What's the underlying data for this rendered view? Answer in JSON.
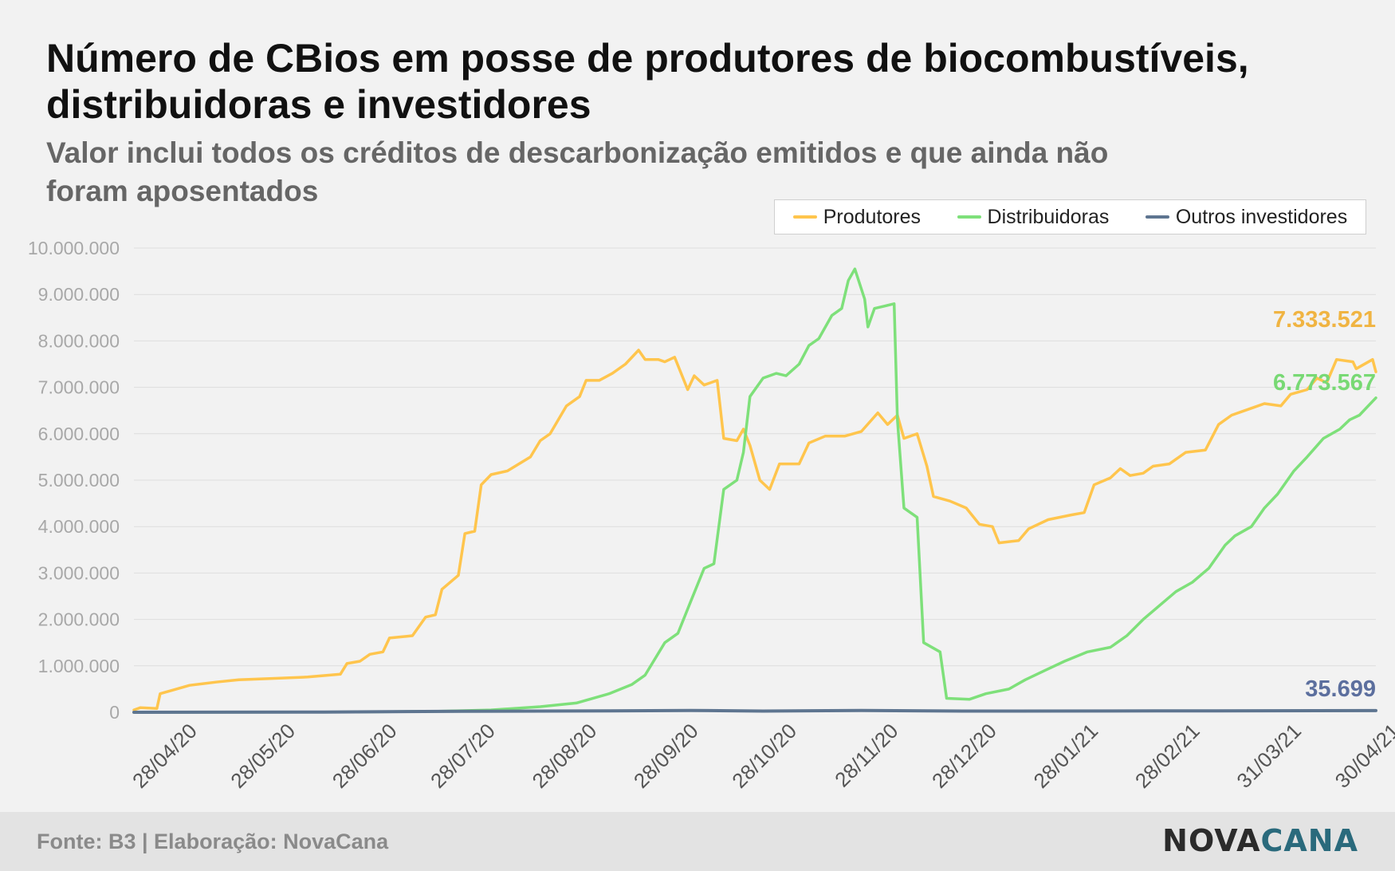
{
  "header": {
    "title": "Número de CBios em posse de produtores de biocombustíveis, distribuidoras e investidores",
    "subtitle": "Valor inclui todos os créditos de descarbonização emitidos e que ainda não foram aposentados"
  },
  "footer": {
    "source": "Fonte: B3 | Elaboração: NovaCana",
    "logo_part1": "NOVA",
    "logo_part2": "CANA"
  },
  "chart_data": {
    "type": "line",
    "title": "Número de CBios em posse de produtores de biocombustíveis, distribuidoras e investidores",
    "subtitle": "Valor inclui todos os créditos de descarbonização emitidos e que ainda não foram aposentados",
    "xlabel": "",
    "ylabel": "",
    "ylim": [
      0,
      10000000
    ],
    "yticks": [
      0,
      1000000,
      2000000,
      3000000,
      4000000,
      5000000,
      6000000,
      7000000,
      8000000,
      9000000,
      10000000
    ],
    "ytick_labels": [
      "0",
      "1.000.000",
      "2.000.000",
      "3.000.000",
      "4.000.000",
      "5.000.000",
      "6.000.000",
      "7.000.000",
      "8.000.000",
      "9.000.000",
      "10.000.000"
    ],
    "xlim": [
      "2020-04-23",
      "2021-05-07"
    ],
    "xticks": [
      "2020-04-28",
      "2020-05-28",
      "2020-06-28",
      "2020-07-28",
      "2020-08-28",
      "2020-09-28",
      "2020-10-28",
      "2020-11-28",
      "2020-12-28",
      "2021-01-28",
      "2021-02-28",
      "2021-03-31",
      "2021-04-30"
    ],
    "xtick_labels": [
      "28/04/20",
      "28/05/20",
      "28/06/20",
      "28/07/20",
      "28/08/20",
      "28/09/20",
      "28/10/20",
      "28/11/20",
      "28/12/20",
      "28/01/21",
      "28/02/21",
      "31/03/21",
      "30/04/21"
    ],
    "grid": true,
    "legend_position": "top-right",
    "series": [
      {
        "name": "Produtores",
        "color": "#ffc54d",
        "end_label": "7.333.521",
        "points": [
          [
            "2020-04-23",
            50000
          ],
          [
            "2020-04-25",
            100000
          ],
          [
            "2020-04-30",
            80000
          ],
          [
            "2020-05-01",
            400000
          ],
          [
            "2020-05-05",
            480000
          ],
          [
            "2020-05-10",
            580000
          ],
          [
            "2020-05-18",
            650000
          ],
          [
            "2020-05-25",
            700000
          ],
          [
            "2020-06-05",
            730000
          ],
          [
            "2020-06-15",
            760000
          ],
          [
            "2020-06-25",
            820000
          ],
          [
            "2020-06-27",
            1050000
          ],
          [
            "2020-07-01",
            1100000
          ],
          [
            "2020-07-04",
            1250000
          ],
          [
            "2020-07-08",
            1300000
          ],
          [
            "2020-07-10",
            1600000
          ],
          [
            "2020-07-17",
            1650000
          ],
          [
            "2020-07-21",
            2050000
          ],
          [
            "2020-07-24",
            2100000
          ],
          [
            "2020-07-26",
            2650000
          ],
          [
            "2020-07-31",
            2950000
          ],
          [
            "2020-08-02",
            3850000
          ],
          [
            "2020-08-05",
            3900000
          ],
          [
            "2020-08-07",
            4900000
          ],
          [
            "2020-08-10",
            5120000
          ],
          [
            "2020-08-15",
            5200000
          ],
          [
            "2020-08-22",
            5500000
          ],
          [
            "2020-08-25",
            5850000
          ],
          [
            "2020-08-28",
            6000000
          ],
          [
            "2020-09-02",
            6600000
          ],
          [
            "2020-09-06",
            6800000
          ],
          [
            "2020-09-08",
            7150000
          ],
          [
            "2020-09-12",
            7150000
          ],
          [
            "2020-09-16",
            7300000
          ],
          [
            "2020-09-20",
            7500000
          ],
          [
            "2020-09-24",
            7800000
          ],
          [
            "2020-09-26",
            7600000
          ],
          [
            "2020-09-30",
            7600000
          ],
          [
            "2020-10-02",
            7550000
          ],
          [
            "2020-10-05",
            7650000
          ],
          [
            "2020-10-09",
            6950000
          ],
          [
            "2020-10-11",
            7250000
          ],
          [
            "2020-10-14",
            7050000
          ],
          [
            "2020-10-18",
            7150000
          ],
          [
            "2020-10-20",
            5900000
          ],
          [
            "2020-10-24",
            5850000
          ],
          [
            "2020-10-26",
            6100000
          ],
          [
            "2020-10-28",
            5750000
          ],
          [
            "2020-10-31",
            5000000
          ],
          [
            "2020-11-03",
            4800000
          ],
          [
            "2020-11-06",
            5350000
          ],
          [
            "2020-11-12",
            5350000
          ],
          [
            "2020-11-15",
            5800000
          ],
          [
            "2020-11-20",
            5950000
          ],
          [
            "2020-11-26",
            5950000
          ],
          [
            "2020-12-01",
            6050000
          ],
          [
            "2020-12-06",
            6450000
          ],
          [
            "2020-12-09",
            6200000
          ],
          [
            "2020-12-12",
            6400000
          ],
          [
            "2020-12-14",
            5900000
          ],
          [
            "2020-12-18",
            6000000
          ],
          [
            "2020-12-21",
            5300000
          ],
          [
            "2020-12-23",
            4650000
          ],
          [
            "2020-12-28",
            4550000
          ],
          [
            "2021-01-02",
            4400000
          ],
          [
            "2021-01-06",
            4050000
          ],
          [
            "2021-01-10",
            4000000
          ],
          [
            "2021-01-12",
            3650000
          ],
          [
            "2021-01-18",
            3700000
          ],
          [
            "2021-01-21",
            3950000
          ],
          [
            "2021-01-27",
            4150000
          ],
          [
            "2021-02-03",
            4250000
          ],
          [
            "2021-02-07",
            4300000
          ],
          [
            "2021-02-10",
            4900000
          ],
          [
            "2021-02-15",
            5050000
          ],
          [
            "2021-02-18",
            5250000
          ],
          [
            "2021-02-21",
            5100000
          ],
          [
            "2021-02-25",
            5150000
          ],
          [
            "2021-02-28",
            5300000
          ],
          [
            "2021-03-05",
            5350000
          ],
          [
            "2021-03-10",
            5600000
          ],
          [
            "2021-03-16",
            5650000
          ],
          [
            "2021-03-20",
            6200000
          ],
          [
            "2021-03-24",
            6400000
          ],
          [
            "2021-03-30",
            6550000
          ],
          [
            "2021-04-03",
            6650000
          ],
          [
            "2021-04-08",
            6600000
          ],
          [
            "2021-04-11",
            6850000
          ],
          [
            "2021-04-16",
            6950000
          ],
          [
            "2021-04-19",
            7200000
          ],
          [
            "2021-04-22",
            7100000
          ],
          [
            "2021-04-25",
            7600000
          ],
          [
            "2021-04-30",
            7550000
          ],
          [
            "2021-05-01",
            7400000
          ],
          [
            "2021-05-06",
            7600000
          ],
          [
            "2021-05-07",
            7333521
          ]
        ]
      },
      {
        "name": "Distribuidoras",
        "color": "#7ee07a",
        "end_label": "6.773.567",
        "points": [
          [
            "2020-04-23",
            0
          ],
          [
            "2020-06-25",
            5000
          ],
          [
            "2020-07-25",
            20000
          ],
          [
            "2020-08-10",
            50000
          ],
          [
            "2020-08-25",
            120000
          ],
          [
            "2020-09-05",
            200000
          ],
          [
            "2020-09-15",
            400000
          ],
          [
            "2020-09-22",
            600000
          ],
          [
            "2020-09-26",
            800000
          ],
          [
            "2020-10-02",
            1500000
          ],
          [
            "2020-10-06",
            1700000
          ],
          [
            "2020-10-10",
            2400000
          ],
          [
            "2020-10-14",
            3100000
          ],
          [
            "2020-10-17",
            3200000
          ],
          [
            "2020-10-20",
            4800000
          ],
          [
            "2020-10-24",
            5000000
          ],
          [
            "2020-10-26",
            5600000
          ],
          [
            "2020-10-28",
            6800000
          ],
          [
            "2020-11-01",
            7200000
          ],
          [
            "2020-11-05",
            7300000
          ],
          [
            "2020-11-08",
            7250000
          ],
          [
            "2020-11-12",
            7500000
          ],
          [
            "2020-11-15",
            7900000
          ],
          [
            "2020-11-18",
            8050000
          ],
          [
            "2020-11-22",
            8550000
          ],
          [
            "2020-11-25",
            8700000
          ],
          [
            "2020-11-27",
            9300000
          ],
          [
            "2020-11-29",
            9550000
          ],
          [
            "2020-12-02",
            8900000
          ],
          [
            "2020-12-03",
            8300000
          ],
          [
            "2020-12-05",
            8700000
          ],
          [
            "2020-12-08",
            8750000
          ],
          [
            "2020-12-11",
            8800000
          ],
          [
            "2020-12-12",
            6300000
          ],
          [
            "2020-12-14",
            4400000
          ],
          [
            "2020-12-18",
            4200000
          ],
          [
            "2020-12-20",
            1500000
          ],
          [
            "2020-12-25",
            1300000
          ],
          [
            "2020-12-27",
            300000
          ],
          [
            "2021-01-03",
            280000
          ],
          [
            "2021-01-08",
            400000
          ],
          [
            "2021-01-15",
            500000
          ],
          [
            "2021-01-20",
            700000
          ],
          [
            "2021-01-26",
            900000
          ],
          [
            "2021-02-01",
            1100000
          ],
          [
            "2021-02-08",
            1300000
          ],
          [
            "2021-02-15",
            1400000
          ],
          [
            "2021-02-20",
            1650000
          ],
          [
            "2021-02-25",
            2000000
          ],
          [
            "2021-03-02",
            2300000
          ],
          [
            "2021-03-07",
            2600000
          ],
          [
            "2021-03-12",
            2800000
          ],
          [
            "2021-03-17",
            3100000
          ],
          [
            "2021-03-22",
            3600000
          ],
          [
            "2021-03-25",
            3800000
          ],
          [
            "2021-03-30",
            4000000
          ],
          [
            "2021-04-03",
            4400000
          ],
          [
            "2021-04-07",
            4700000
          ],
          [
            "2021-04-12",
            5200000
          ],
          [
            "2021-04-16",
            5500000
          ],
          [
            "2021-04-21",
            5900000
          ],
          [
            "2021-04-26",
            6100000
          ],
          [
            "2021-04-29",
            6300000
          ],
          [
            "2021-05-02",
            6400000
          ],
          [
            "2021-05-07",
            6773567
          ]
        ]
      },
      {
        "name": "Outros investidores",
        "color": "#5e7590",
        "end_label": "35.699",
        "points": [
          [
            "2020-04-23",
            0
          ],
          [
            "2020-06-20",
            5000
          ],
          [
            "2020-08-01",
            20000
          ],
          [
            "2020-09-15",
            30000
          ],
          [
            "2020-10-10",
            40000
          ],
          [
            "2020-11-01",
            25000
          ],
          [
            "2020-12-01",
            40000
          ],
          [
            "2021-01-01",
            25000
          ],
          [
            "2021-03-01",
            30000
          ],
          [
            "2021-05-07",
            35699
          ]
        ]
      }
    ]
  }
}
